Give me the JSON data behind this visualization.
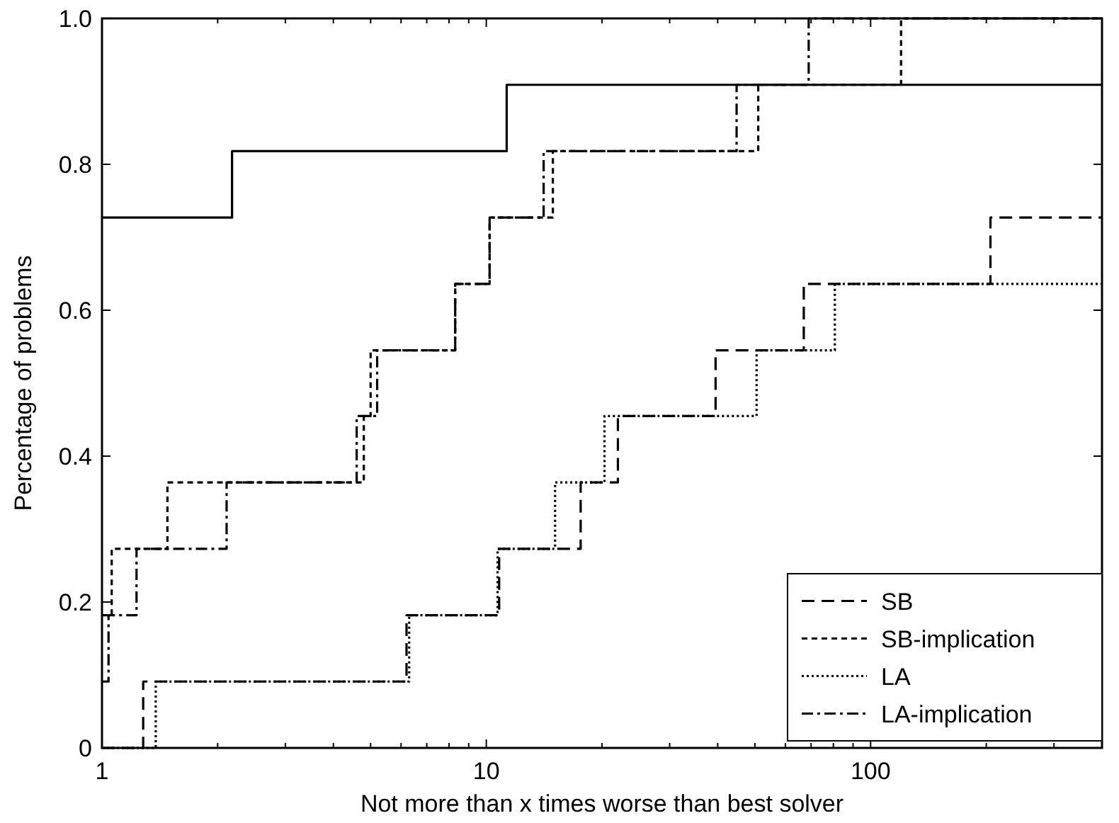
{
  "chart_data": {
    "type": "step",
    "xlabel": "Not more than x times worse than best solver",
    "ylabel": "Percentage of problems",
    "log": "x",
    "xlim": [
      1,
      400
    ],
    "ylim": [
      0,
      1
    ],
    "xticks": [
      1,
      {
        "value": 2,
        "label": null
      },
      {
        "value": 3,
        "label": null
      },
      {
        "value": 4,
        "label": null
      },
      {
        "value": 5,
        "label": null
      },
      {
        "value": 6,
        "label": null
      },
      {
        "value": 7,
        "label": null
      },
      {
        "value": 8,
        "label": null
      },
      {
        "value": 9,
        "label": null
      },
      10,
      {
        "value": 20,
        "label": null
      },
      {
        "value": 30,
        "label": null
      },
      {
        "value": 40,
        "label": null
      },
      {
        "value": 50,
        "label": null
      },
      {
        "value": 60,
        "label": null
      },
      {
        "value": 70,
        "label": null
      },
      {
        "value": 80,
        "label": null
      },
      {
        "value": 90,
        "label": null
      },
      100,
      {
        "value": 200,
        "label": null
      },
      {
        "value": 300,
        "label": null
      },
      {
        "value": 400,
        "label": null
      }
    ],
    "yticks": [
      0,
      0.2,
      0.4,
      0.6,
      0.8,
      {
        "value": 1,
        "label": "1.0"
      }
    ],
    "grid": false,
    "legend": "bottom right",
    "series": [
      {
        "color": "#000000",
        "line_style": "solid",
        "x": [
          1,
          2.18,
          11.3,
          400
        ],
        "values": [
          0.727,
          0.818,
          0.909,
          0.909
        ]
      },
      {
        "name": "SB",
        "color": "#000000",
        "line_style": "dashed",
        "x": [
          1,
          1.28,
          6.2,
          10.8,
          17.6,
          22,
          39.5,
          67,
          205,
          400
        ],
        "values": [
          0,
          0.091,
          0.182,
          0.273,
          0.364,
          0.455,
          0.545,
          0.636,
          0.727,
          0.727
        ]
      },
      {
        "name": "SB-implication",
        "color": "#000000",
        "line_style": "short-dashed",
        "x": [
          1,
          1.06,
          1.48,
          4.8,
          5.0,
          8.3,
          10.2,
          14.9,
          51,
          120,
          400
        ],
        "values": [
          0.182,
          0.273,
          0.364,
          0.455,
          0.545,
          0.636,
          0.727,
          0.818,
          0.909,
          1,
          1
        ]
      },
      {
        "name": "LA",
        "color": "#000000",
        "line_style": "dotted",
        "x": [
          1,
          1.38,
          6.3,
          10.7,
          15.1,
          20.3,
          50.5,
          80.7,
          400
        ],
        "values": [
          0,
          0.091,
          0.182,
          0.273,
          0.364,
          0.455,
          0.545,
          0.636,
          0.636
        ]
      },
      {
        "name": "LA-implication",
        "color": "#000000",
        "line_style": "dashdot",
        "x": [
          1,
          1.04,
          1.23,
          2.11,
          4.6,
          5.2,
          8.3,
          10.2,
          14.1,
          44.8,
          69,
          400
        ],
        "values": [
          0.091,
          0.182,
          0.273,
          0.364,
          0.455,
          0.545,
          0.636,
          0.727,
          0.818,
          0.909,
          1,
          1
        ]
      }
    ]
  }
}
